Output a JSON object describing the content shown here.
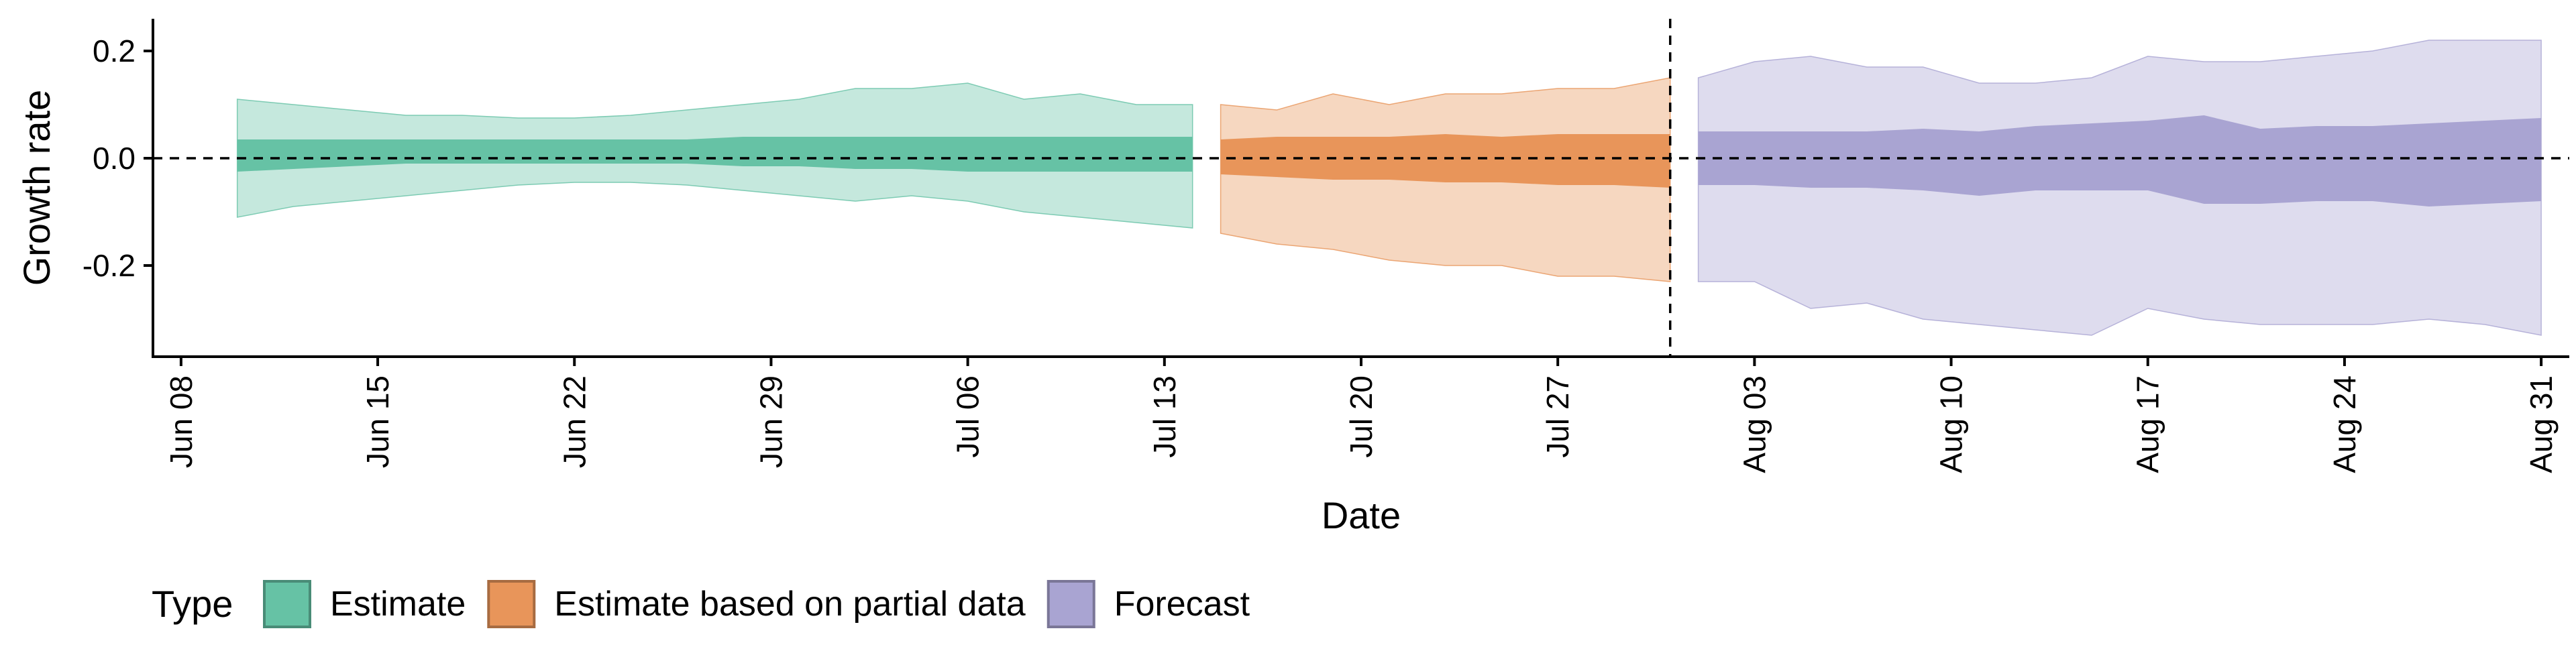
{
  "chart_data": {
    "type": "area",
    "xlabel": "Date",
    "ylabel": "Growth rate",
    "ylim": [
      -0.37,
      0.26
    ],
    "y_ticks": [
      0.2,
      0.0,
      -0.2
    ],
    "y_tick_labels": [
      "0.2",
      "0.0",
      "-0.2"
    ],
    "x_range": [
      "2020-06-07",
      "2020-09-01"
    ],
    "x_ticks": [
      "2020-06-08",
      "2020-06-15",
      "2020-06-22",
      "2020-06-29",
      "2020-07-06",
      "2020-07-13",
      "2020-07-20",
      "2020-07-27",
      "2020-08-03",
      "2020-08-10",
      "2020-08-17",
      "2020-08-24",
      "2020-08-31"
    ],
    "x_tick_labels": [
      "Jun 08",
      "Jun 15",
      "Jun 22",
      "Jun 29",
      "Jul 06",
      "Jul 13",
      "Jul 20",
      "Jul 27",
      "Aug 03",
      "Aug 10",
      "Aug 17",
      "Aug 24",
      "Aug 31"
    ],
    "reference_hline": 0,
    "reference_vline": "2020-07-31",
    "grid": false,
    "legend": {
      "title": "Type",
      "position": "bottom-left",
      "entries": [
        "Estimate",
        "Estimate based on partial data",
        "Forecast"
      ]
    },
    "series": [
      {
        "name": "Estimate",
        "color": "#66c2a5",
        "x": [
          "2020-06-10",
          "2020-06-12",
          "2020-06-14",
          "2020-06-16",
          "2020-06-18",
          "2020-06-20",
          "2020-06-22",
          "2020-06-24",
          "2020-06-26",
          "2020-06-28",
          "2020-06-30",
          "2020-07-02",
          "2020-07-04",
          "2020-07-06",
          "2020-07-08",
          "2020-07-10",
          "2020-07-12",
          "2020-07-14"
        ],
        "outer_lower": [
          -0.11,
          -0.09,
          -0.08,
          -0.07,
          -0.06,
          -0.05,
          -0.045,
          -0.045,
          -0.05,
          -0.06,
          -0.07,
          -0.08,
          -0.07,
          -0.08,
          -0.1,
          -0.11,
          -0.12,
          -0.13
        ],
        "outer_upper": [
          0.11,
          0.1,
          0.09,
          0.08,
          0.08,
          0.075,
          0.075,
          0.08,
          0.09,
          0.1,
          0.11,
          0.13,
          0.13,
          0.14,
          0.11,
          0.12,
          0.1,
          0.1
        ],
        "inner_lower": [
          -0.025,
          -0.02,
          -0.015,
          -0.01,
          -0.01,
          -0.01,
          -0.01,
          -0.01,
          -0.01,
          -0.015,
          -0.015,
          -0.02,
          -0.02,
          -0.025,
          -0.025,
          -0.025,
          -0.025,
          -0.025
        ],
        "inner_upper": [
          0.035,
          0.035,
          0.035,
          0.035,
          0.035,
          0.035,
          0.035,
          0.035,
          0.035,
          0.04,
          0.04,
          0.04,
          0.04,
          0.04,
          0.04,
          0.04,
          0.04,
          0.04
        ]
      },
      {
        "name": "Estimate based on partial data",
        "color": "#e8955a",
        "x": [
          "2020-07-15",
          "2020-07-17",
          "2020-07-19",
          "2020-07-21",
          "2020-07-23",
          "2020-07-25",
          "2020-07-27",
          "2020-07-29",
          "2020-07-31"
        ],
        "outer_lower": [
          -0.14,
          -0.16,
          -0.17,
          -0.19,
          -0.2,
          -0.2,
          -0.22,
          -0.22,
          -0.23
        ],
        "outer_upper": [
          0.1,
          0.09,
          0.12,
          0.1,
          0.12,
          0.12,
          0.13,
          0.13,
          0.15
        ],
        "inner_lower": [
          -0.03,
          -0.035,
          -0.04,
          -0.04,
          -0.045,
          -0.045,
          -0.05,
          -0.05,
          -0.055
        ],
        "inner_upper": [
          0.035,
          0.04,
          0.04,
          0.04,
          0.045,
          0.04,
          0.045,
          0.045,
          0.045
        ]
      },
      {
        "name": "Forecast",
        "color": "#a9a4d2",
        "x": [
          "2020-08-01",
          "2020-08-03",
          "2020-08-05",
          "2020-08-07",
          "2020-08-09",
          "2020-08-11",
          "2020-08-13",
          "2020-08-15",
          "2020-08-17",
          "2020-08-19",
          "2020-08-21",
          "2020-08-23",
          "2020-08-25",
          "2020-08-27",
          "2020-08-29",
          "2020-08-31"
        ],
        "outer_lower": [
          -0.23,
          -0.23,
          -0.28,
          -0.27,
          -0.3,
          -0.31,
          -0.32,
          -0.33,
          -0.28,
          -0.3,
          -0.31,
          -0.31,
          -0.31,
          -0.3,
          -0.31,
          -0.33
        ],
        "outer_upper": [
          0.15,
          0.18,
          0.19,
          0.17,
          0.17,
          0.14,
          0.14,
          0.15,
          0.19,
          0.18,
          0.18,
          0.19,
          0.2,
          0.22,
          0.22,
          0.22
        ],
        "inner_lower": [
          -0.05,
          -0.05,
          -0.055,
          -0.055,
          -0.06,
          -0.07,
          -0.06,
          -0.06,
          -0.06,
          -0.085,
          -0.085,
          -0.08,
          -0.08,
          -0.09,
          -0.085,
          -0.08
        ],
        "inner_upper": [
          0.05,
          0.05,
          0.05,
          0.05,
          0.055,
          0.05,
          0.06,
          0.065,
          0.07,
          0.08,
          0.055,
          0.06,
          0.06,
          0.065,
          0.07,
          0.075
        ]
      }
    ]
  }
}
